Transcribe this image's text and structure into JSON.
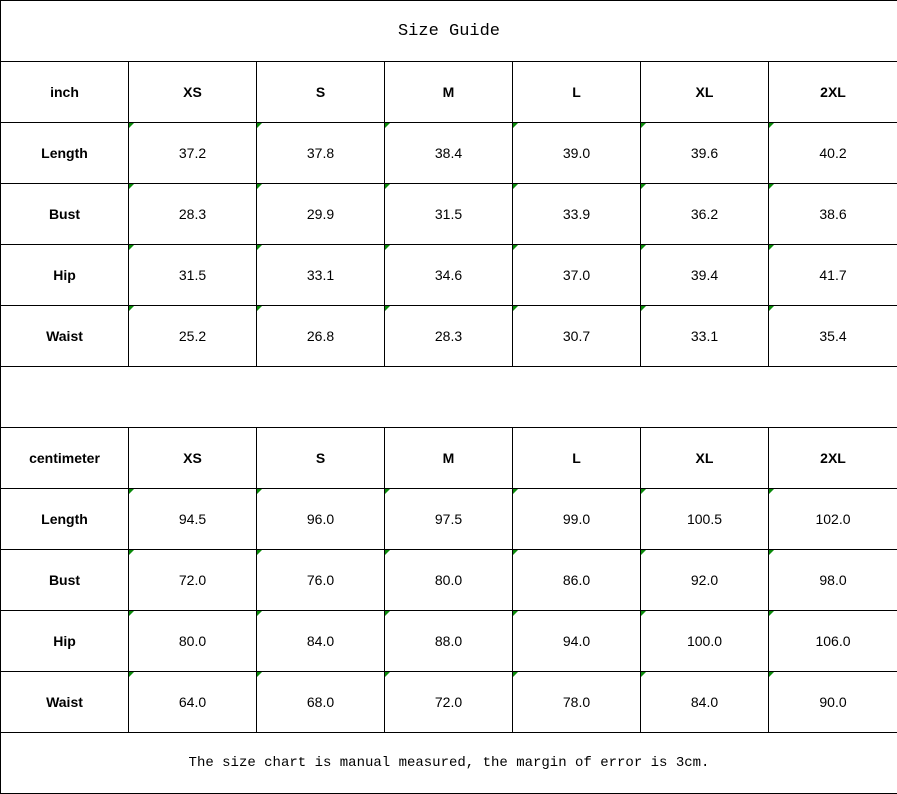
{
  "title": "Size Guide",
  "note": "The size chart is manual measured, the margin of error is 3cm.",
  "indicator_color": "#0a8a0a",
  "sizes": [
    "XS",
    "S",
    "M",
    "L",
    "XL",
    "2XL"
  ],
  "tables": [
    {
      "unit": "inch",
      "rows": [
        {
          "label": "Length",
          "values": [
            "37.2",
            "37.8",
            "38.4",
            "39.0",
            "39.6",
            "40.2"
          ]
        },
        {
          "label": "Bust",
          "values": [
            "28.3",
            "29.9",
            "31.5",
            "33.9",
            "36.2",
            "38.6"
          ]
        },
        {
          "label": "Hip",
          "values": [
            "31.5",
            "33.1",
            "34.6",
            "37.0",
            "39.4",
            "41.7"
          ]
        },
        {
          "label": "Waist",
          "values": [
            "25.2",
            "26.8",
            "28.3",
            "30.7",
            "33.1",
            "35.4"
          ]
        }
      ]
    },
    {
      "unit": "centimeter",
      "rows": [
        {
          "label": "Length",
          "values": [
            "94.5",
            "96.0",
            "97.5",
            "99.0",
            "100.5",
            "102.0"
          ]
        },
        {
          "label": "Bust",
          "values": [
            "72.0",
            "76.0",
            "80.0",
            "86.0",
            "92.0",
            "98.0"
          ]
        },
        {
          "label": "Hip",
          "values": [
            "80.0",
            "84.0",
            "88.0",
            "94.0",
            "100.0",
            "106.0"
          ]
        },
        {
          "label": "Waist",
          "values": [
            "64.0",
            "68.0",
            "72.0",
            "78.0",
            "84.0",
            "90.0"
          ]
        }
      ]
    }
  ]
}
